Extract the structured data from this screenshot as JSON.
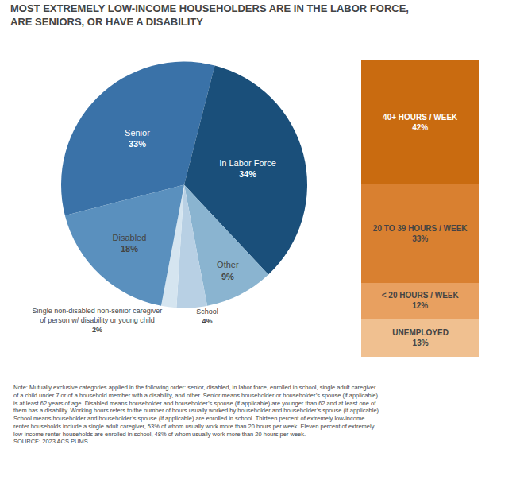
{
  "chart_data": [
    {
      "type": "pie",
      "title": "MOST EXTREMELY LOW-INCOME HOUSEHOLDERS ARE IN THE LABOR FORCE,\nARE SENIORS, OR HAVE A DISABILITY",
      "categories": [
        "Senior",
        "In Labor Force",
        "Other",
        "School",
        "Single non-disabled non-senior caregiver\nof person w/ disability or young child",
        "Disabled"
      ],
      "values": [
        33,
        34,
        9,
        4,
        2,
        18
      ],
      "value_labels": [
        "33%",
        "34%",
        "9%",
        "4%",
        "2%",
        "18%"
      ],
      "colors": [
        "#3a72a8",
        "#1a4f7a",
        "#8ab4d0",
        "#b8d0e4",
        "#d5e5f0",
        "#5a90be"
      ],
      "data_labels": true,
      "annotations": [
        "Note: Mutually exclusive categories applied in the following order: senior, disabled, in labor force, enrolled in school, single adult caregiver\nof a child under 7 or of a household member with a disability, and other. Senior means householder or householder’s spouse (if applicable)\nis at least 62 years of age. Disabled means householder and householder’s spouse (if applicable) are younger than 62 and at least one of\nthem has a disability. Working hours refers to the number of hours usually worked by householder and householder’s spouse (if applicable).\nSchool means householder and householder’s spouse (if applicable) are enrolled in school. Thirteen percent of extremely low-income\nrenter households include a single adult caregiver, 53% of whom usually work more than 20 hours per week. Eleven percent of extremely\nlow-income renter households are enrolled in school, 48% of whom usually work more than 20 hours per week.\nSOURCE: 2023 ACS PUMS."
      ]
    },
    {
      "type": "bar",
      "stacked": true,
      "categories": [
        null
      ],
      "series": [
        {
          "name": "40+ HOURS / WEEK",
          "color": "#c96b10",
          "values": [
            42
          ],
          "value_labels": [
            "42%"
          ]
        },
        {
          "name": "20 TO 39 HOURS / WEEK",
          "color": "#d98030",
          "values": [
            33
          ],
          "value_labels": [
            "33%"
          ]
        },
        {
          "name": "< 20 HOURS / WEEK",
          "color": "#e8a060",
          "values": [
            12
          ],
          "value_labels": [
            "12%"
          ]
        },
        {
          "name": "UNEMPLOYED",
          "color": "#f0c090",
          "values": [
            13
          ],
          "value_labels": [
            "13%"
          ]
        }
      ],
      "ylim": [
        0,
        100
      ],
      "data_labels": true,
      "tick_labels": false,
      "grid": false
    }
  ]
}
